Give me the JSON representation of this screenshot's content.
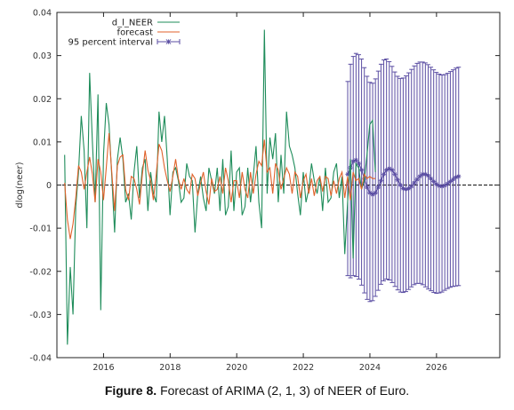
{
  "caption": {
    "label": "Figure 8.",
    "text": "Forecast of ARIMA (2, 1, 3) of NEER of Euro."
  },
  "chart_data": {
    "type": "line",
    "title": "",
    "xlabel": "",
    "ylabel": "dlog(neer)",
    "xlim": [
      2014.6,
      2027.9
    ],
    "ylim": [
      -0.04,
      0.04
    ],
    "x_ticks": [
      2016,
      2018,
      2020,
      2022,
      2024,
      2026
    ],
    "y_ticks": [
      -0.04,
      -0.03,
      -0.02,
      -0.01,
      0,
      0.01,
      0.02,
      0.03,
      0.04
    ],
    "y_tick_labels": [
      "-0.04",
      "-0.03",
      "-0.02",
      "-0.01",
      "0",
      "0.01",
      "0.02",
      "0.03",
      "0.04"
    ],
    "grid": false,
    "zero_line": true,
    "legend_position": "top-left",
    "colors": {
      "actual": "#1e8c5a",
      "forecast": "#e0622b",
      "interval": "#5b4ea3"
    },
    "actual_start": 2014.833,
    "step": 0.0833,
    "forecast_start": 2023.333,
    "series": [
      {
        "name": "d_l_NEER",
        "values": [
          0.007,
          -0.037,
          -0.019,
          -0.03,
          -0.005,
          0.003,
          0.016,
          0.008,
          -0.01,
          0.026,
          0.01,
          -0.004,
          0.021,
          -0.029,
          0.007,
          0.019,
          0.014,
          0.002,
          -0.011,
          0.006,
          0.011,
          0.006,
          -0.004,
          -0.002,
          -0.008,
          0.003,
          0.009,
          -0.003,
          0.004,
          0.006,
          -0.006,
          0.003,
          -0.002,
          -0.004,
          0.017,
          0.01,
          0.016,
          0.006,
          -0.007,
          0.003,
          0.004,
          0.001,
          -0.004,
          -0.003,
          0.005,
          0.002,
          0.001,
          -0.011,
          -0.002,
          0.002,
          -0.003,
          -0.006,
          0.004,
          0.001,
          -0.002,
          0.004,
          -0.006,
          0.006,
          -0.007,
          -0.005,
          0.008,
          -0.006,
          0.003,
          0.004,
          -0.007,
          -0.005,
          0.004,
          -0.004,
          0.002,
          0.009,
          -0.004,
          -0.01,
          0.036,
          -0.002,
          0.011,
          0.006,
          0.012,
          -0.004,
          0.007,
          -0.002,
          0.017,
          0.009,
          0.007,
          0.004,
          -0.002,
          -0.007,
          0.003,
          -0.004,
          -0.001,
          0.005,
          0.001,
          -0.002,
          0.002,
          -0.006,
          0.004,
          -0.004,
          -0.003,
          0.003,
          0.005,
          -0.003,
          0.002,
          -0.016,
          -0.004,
          0.006,
          -0.017,
          0.005,
          0.004,
          -0.001,
          0.001,
          0.007,
          0.014,
          0.015,
          0.003
        ]
      },
      {
        "name": "forecast",
        "values": [
          0.0005,
          -0.008,
          -0.0125,
          -0.009,
          -0.003,
          0.0045,
          0.003,
          -0.001,
          0.003,
          0.0065,
          0.0025,
          -0.004,
          0.006,
          0.003,
          -0.0035,
          0.004,
          0.012,
          0.003,
          -0.006,
          0.0045,
          0.0065,
          0.007,
          -0.001,
          -0.0035,
          0.002,
          0.0015,
          -0.001,
          -0.0045,
          0.0025,
          0.008,
          0.0035,
          0.001,
          -0.0035,
          0.0025,
          0.0095,
          0.008,
          0.004,
          0.001,
          -0.0015,
          0.002,
          0.006,
          0.0015,
          -0.001,
          0.0015,
          -0.001,
          -0.002,
          0.0025,
          0.0015,
          -0.0025,
          0.0005,
          0.003,
          -0.0015,
          -0.0045,
          0.0015,
          -0.0015,
          -0.001,
          0.002,
          -0.002,
          0.004,
          0.001,
          -0.004,
          0.001,
          0.001,
          -0.003,
          0.003,
          -0.001,
          -0.003,
          0.003,
          -0.002,
          0.0025,
          0.0055,
          0.0045,
          0.0105,
          0.003,
          0.004,
          -0.002,
          0.005,
          0.0035,
          -0.001,
          0.0015,
          0.004,
          0.0025,
          -0.002,
          0.003,
          0.002,
          -0.003,
          0.001,
          0.0025,
          -0.002,
          0.0015,
          -0.0025,
          0.001,
          0.002,
          -0.0015,
          0.002,
          0.0015,
          -0.0025,
          0.001,
          -0.002,
          0.0015,
          0.003,
          -0.003,
          0.002,
          -0.0035,
          0.003,
          0.001,
          0.0015,
          -0.001,
          0.0025,
          0.0015,
          0.002,
          0.0015,
          0.0015
        ]
      },
      {
        "name": "95 percent interval",
        "center": [
          0.0025,
          0.004,
          0.0055,
          0.0058,
          0.005,
          0.0035,
          0.0015,
          -0.0005,
          -0.0018,
          -0.0022,
          -0.0018,
          -0.0005,
          0.001,
          0.0025,
          0.0035,
          0.0038,
          0.0035,
          0.0025,
          0.0012,
          0.0,
          -0.0008,
          -0.001,
          -0.0008,
          -0.0003,
          0.0005,
          0.0013,
          0.002,
          0.0025,
          0.0025,
          0.0022,
          0.0015,
          0.0008,
          0.0002,
          -0.0002,
          -0.0003,
          -0.0001,
          0.0003,
          0.0008,
          0.0013,
          0.0018,
          0.002
        ],
        "upper": [
          0.024,
          0.028,
          0.0298,
          0.0305,
          0.0302,
          0.0292,
          0.0272,
          0.0252,
          0.0238,
          0.0236,
          0.0246,
          0.0264,
          0.028,
          0.029,
          0.0292,
          0.0286,
          0.0275,
          0.0262,
          0.0252,
          0.0247,
          0.0248,
          0.0253,
          0.026,
          0.0268,
          0.0276,
          0.0282,
          0.0285,
          0.0285,
          0.0283,
          0.0279,
          0.0273,
          0.0267,
          0.0261,
          0.0257,
          0.0255,
          0.0256,
          0.0259,
          0.0263,
          0.0267,
          0.0271,
          0.0273
        ],
        "lower": [
          -0.021,
          -0.0215,
          -0.021,
          -0.0212,
          -0.0218,
          -0.0232,
          -0.025,
          -0.0265,
          -0.027,
          -0.0268,
          -0.0258,
          -0.0244,
          -0.023,
          -0.0222,
          -0.0218,
          -0.022,
          -0.0226,
          -0.0235,
          -0.0243,
          -0.0248,
          -0.0249,
          -0.0247,
          -0.0242,
          -0.0236,
          -0.0231,
          -0.0228,
          -0.0228,
          -0.0231,
          -0.0236,
          -0.0241,
          -0.0245,
          -0.0249,
          -0.0251,
          -0.025,
          -0.0248,
          -0.0244,
          -0.024,
          -0.0237,
          -0.0235,
          -0.0234,
          -0.0233
        ]
      }
    ]
  }
}
